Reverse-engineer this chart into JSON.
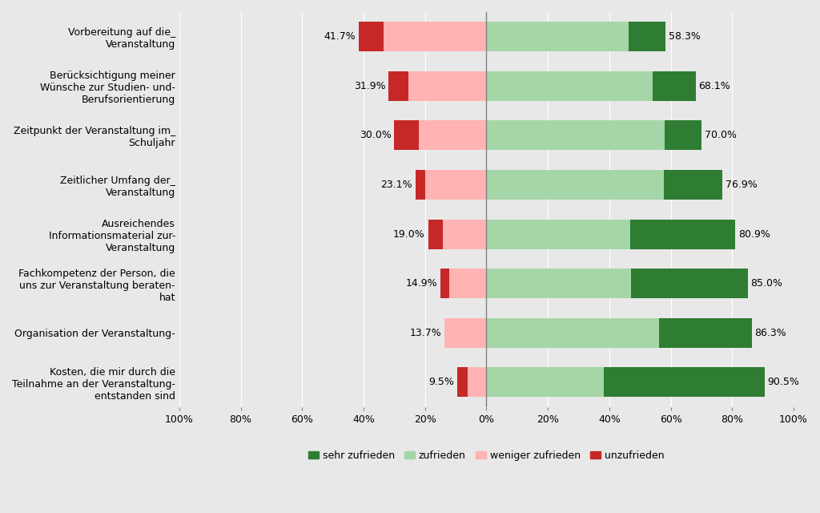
{
  "categories": [
    "Vorbereitung auf die_\nVeranstaltung",
    "Berücksichtigung meiner\nWünsche zur Studien- und-\nBerufsorientierung",
    "Zeitpunkt der Veranstaltung im_\nSchuljahr",
    "Zeitlicher Umfang der_\nVeranstaltung",
    "Ausreichendes\nInformationsmaterial zur-\nVeranstaltung",
    "Fachkompetenz der Person, die\nuns zur Veranstaltung beraten-\nhat",
    "Organisation der Veranstaltung-",
    "Kosten, die mir durch die\nTeilnahme an der Veranstaltung-\nentstanden sind"
  ],
  "unzufrieden": [
    8.3,
    6.4,
    8.0,
    3.1,
    4.8,
    2.9,
    0.0,
    3.5
  ],
  "weniger_zufrieden": [
    33.4,
    25.5,
    22.0,
    20.0,
    14.2,
    12.0,
    13.7,
    6.0
  ],
  "zufrieden": [
    46.3,
    54.1,
    57.9,
    57.7,
    46.7,
    47.0,
    56.3,
    38.1
  ],
  "sehr_zufrieden": [
    12.0,
    14.0,
    12.1,
    19.2,
    34.2,
    38.0,
    30.0,
    52.4
  ],
  "left_total_label": [
    "41.7%",
    "31.9%",
    "30.0%",
    "23.1%",
    "19.0%",
    "14.9%",
    "13.7%",
    "9.5%"
  ],
  "right_total_label": [
    "58.3%",
    "68.1%",
    "70.0%",
    "76.9%",
    "80.9%",
    "85.0%",
    "86.3%",
    "90.5%"
  ],
  "color_sehr_zufrieden": "#2e7d32",
  "color_zufrieden": "#a5d6a7",
  "color_weniger_zufrieden": "#ffb3b3",
  "color_unzufrieden": "#c62828",
  "background_color": "#e8e8e8",
  "xlim": [
    -100,
    100
  ],
  "xticks": [
    -100,
    -80,
    -60,
    -40,
    -20,
    0,
    20,
    40,
    60,
    80,
    100
  ],
  "xticklabels": [
    "100%",
    "80%",
    "60%",
    "40%",
    "20%",
    "0%",
    "20%",
    "40%",
    "60%",
    "80%",
    "100%"
  ],
  "legend_labels": [
    "sehr zufrieden",
    "zufrieden",
    "weniger zufrieden",
    "unzufrieden"
  ],
  "legend_colors": [
    "#2e7d32",
    "#a5d6a7",
    "#ffb3b3",
    "#c62828"
  ],
  "label_fontsize": 9,
  "tick_fontsize": 9,
  "legend_fontsize": 9,
  "bar_height": 0.6
}
